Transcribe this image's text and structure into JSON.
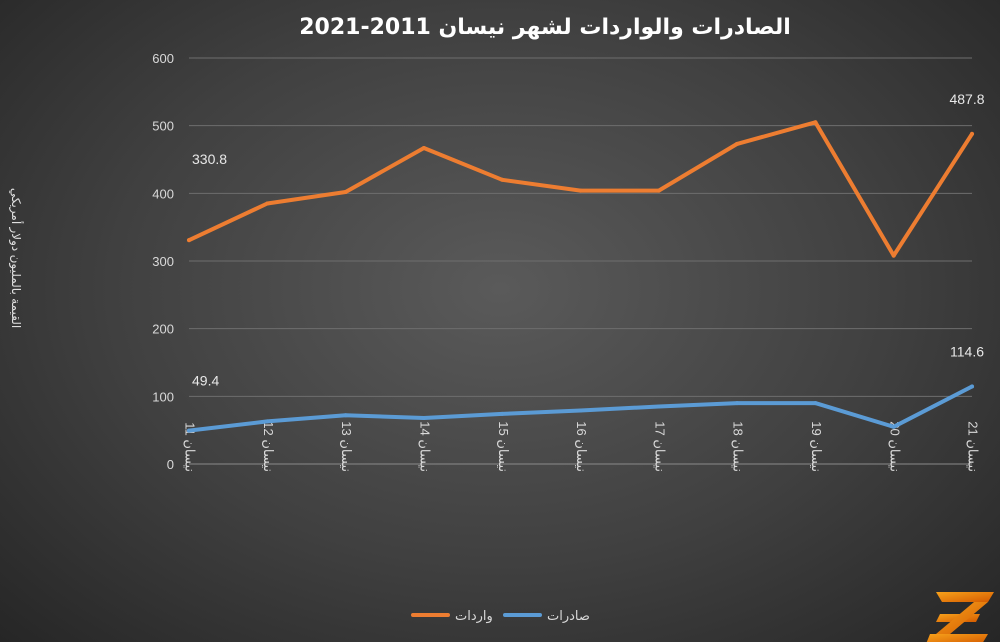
{
  "chart_data": {
    "type": "line",
    "title": "الصادرات والواردات لشهر نيسان 2011-2021",
    "ylabel": "القيمة بالمليون دولار أمريكي",
    "xlabel": "",
    "ylim": [
      0,
      600
    ],
    "yticks": [
      0,
      100,
      200,
      300,
      400,
      500,
      600
    ],
    "categories": [
      "نيسان 11",
      "نيسان 12",
      "نيسان 13",
      "نيسان 14",
      "نيسان 15",
      "نيسان 16",
      "نيسان 17",
      "نيسان 18",
      "نيسان 19",
      "نيسان 20",
      "نيسان 21"
    ],
    "grid": true,
    "legend_position": "bottom",
    "series": [
      {
        "name": "واردات",
        "color": "#ed7d31",
        "values": [
          330.8,
          385,
          402,
          467,
          420,
          404,
          404,
          473,
          505,
          308,
          487.8
        ],
        "data_labels": [
          {
            "index": 0,
            "text": "330.8"
          },
          {
            "index": 10,
            "text": "487.8"
          }
        ]
      },
      {
        "name": "صادرات",
        "color": "#5b9bd5",
        "values": [
          49.4,
          63,
          72,
          68,
          74,
          79,
          85,
          90,
          90,
          55,
          114.6
        ],
        "data_labels": [
          {
            "index": 0,
            "text": "49.4"
          },
          {
            "index": 10,
            "text": "114.6"
          }
        ]
      }
    ]
  },
  "logo": {
    "text": "ZB",
    "icon": "zb-logo-icon"
  }
}
